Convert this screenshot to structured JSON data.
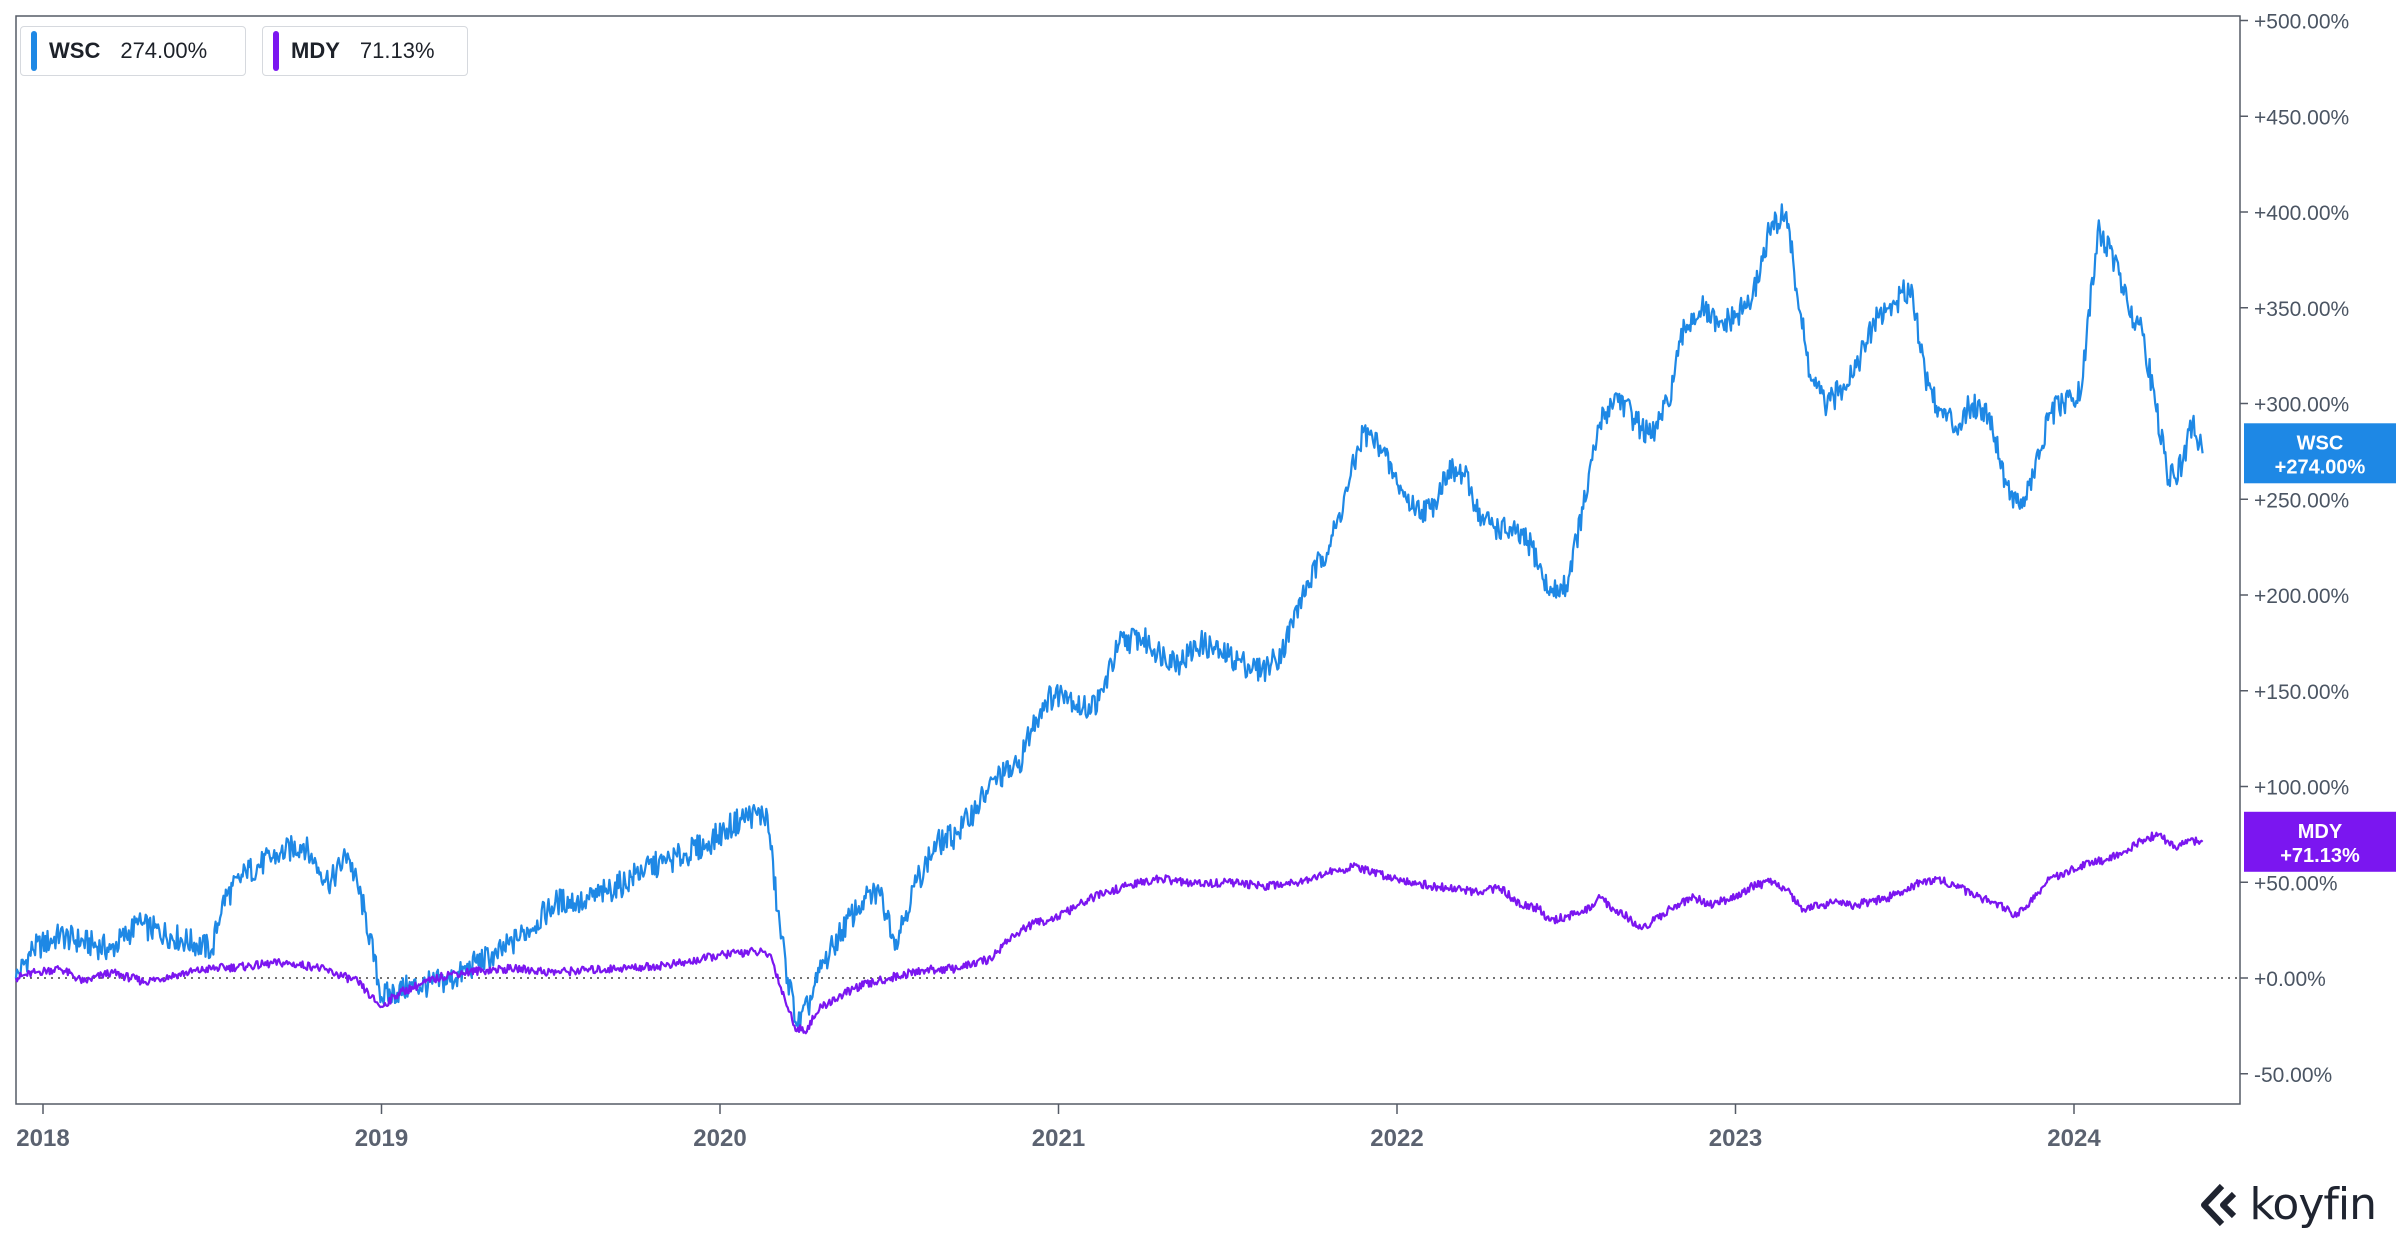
{
  "legend": [
    {
      "symbol": "WSC",
      "value": "274.00%",
      "color": "#1e88e5"
    },
    {
      "symbol": "MDY",
      "value": "71.13%",
      "color": "#7b16f0"
    }
  ],
  "badges": [
    {
      "symbol": "WSC",
      "value": "+274.00%",
      "y": 274.0,
      "color": "#1e88e5"
    },
    {
      "symbol": "MDY",
      "value": "+71.13%",
      "y": 71.13,
      "color": "#7b16f0"
    }
  ],
  "brand": {
    "name": "koyfin",
    "logo_icon": "koyfin-logo-icon"
  },
  "chart_data": {
    "type": "line",
    "title": "",
    "xlabel": "",
    "ylabel": "",
    "x_range": [
      2017.93,
      2024.6
    ],
    "ylim": [
      -50,
      500
    ],
    "y_ticks": [
      -50,
      0,
      50,
      100,
      150,
      200,
      250,
      300,
      350,
      400,
      450,
      500
    ],
    "y_tick_labels": [
      "-50.00%",
      "+0.00%",
      "+50.00%",
      "+100.00%",
      "+150.00%",
      "+200.00%",
      "+250.00%",
      "+300.00%",
      "+350.00%",
      "+400.00%",
      "+450.00%",
      "+500.00%"
    ],
    "x_ticks": [
      2018,
      2019,
      2020,
      2021,
      2022,
      2023,
      2024
    ],
    "x_tick_labels": [
      "2018",
      "2019",
      "2020",
      "2021",
      "2022",
      "2023",
      "2024"
    ],
    "zero_line": "dotted",
    "grid": false,
    "legend_position": "top-left",
    "series": [
      {
        "name": "WSC",
        "color": "#1e88e5",
        "points": [
          [
            2017.92,
            0
          ],
          [
            2017.97,
            15
          ],
          [
            2018.05,
            22
          ],
          [
            2018.2,
            15
          ],
          [
            2018.28,
            28
          ],
          [
            2018.38,
            22
          ],
          [
            2018.5,
            15
          ],
          [
            2018.53,
            40
          ],
          [
            2018.6,
            55
          ],
          [
            2018.7,
            65
          ],
          [
            2018.77,
            70
          ],
          [
            2018.8,
            60
          ],
          [
            2018.85,
            50
          ],
          [
            2018.9,
            65
          ],
          [
            2018.95,
            35
          ],
          [
            2019.0,
            -10
          ],
          [
            2019.08,
            -5
          ],
          [
            2019.15,
            -3
          ],
          [
            2019.22,
            0
          ],
          [
            2019.28,
            8
          ],
          [
            2019.34,
            12
          ],
          [
            2019.4,
            20
          ],
          [
            2019.46,
            30
          ],
          [
            2019.52,
            40
          ],
          [
            2019.6,
            40
          ],
          [
            2019.66,
            45
          ],
          [
            2019.72,
            50
          ],
          [
            2019.78,
            58
          ],
          [
            2019.84,
            60
          ],
          [
            2019.9,
            65
          ],
          [
            2019.96,
            70
          ],
          [
            2020.02,
            78
          ],
          [
            2020.08,
            85
          ],
          [
            2020.14,
            85
          ],
          [
            2020.17,
            35
          ],
          [
            2020.2,
            0
          ],
          [
            2020.23,
            -25
          ],
          [
            2020.26,
            -15
          ],
          [
            2020.3,
            5
          ],
          [
            2020.36,
            25
          ],
          [
            2020.42,
            40
          ],
          [
            2020.47,
            45
          ],
          [
            2020.52,
            20
          ],
          [
            2020.58,
            50
          ],
          [
            2020.64,
            70
          ],
          [
            2020.7,
            75
          ],
          [
            2020.76,
            90
          ],
          [
            2020.82,
            105
          ],
          [
            2020.88,
            110
          ],
          [
            2020.92,
            130
          ],
          [
            2020.96,
            145
          ],
          [
            2021.02,
            150
          ],
          [
            2021.07,
            140
          ],
          [
            2021.12,
            145
          ],
          [
            2021.18,
            175
          ],
          [
            2021.24,
            178
          ],
          [
            2021.3,
            170
          ],
          [
            2021.36,
            165
          ],
          [
            2021.42,
            175
          ],
          [
            2021.48,
            170
          ],
          [
            2021.54,
            165
          ],
          [
            2021.6,
            160
          ],
          [
            2021.66,
            170
          ],
          [
            2021.72,
            200
          ],
          [
            2021.78,
            220
          ],
          [
            2021.82,
            235
          ],
          [
            2021.86,
            260
          ],
          [
            2021.9,
            285
          ],
          [
            2021.95,
            278
          ],
          [
            2022.0,
            258
          ],
          [
            2022.05,
            245
          ],
          [
            2022.1,
            245
          ],
          [
            2022.15,
            265
          ],
          [
            2022.2,
            262
          ],
          [
            2022.25,
            240
          ],
          [
            2022.3,
            235
          ],
          [
            2022.35,
            232
          ],
          [
            2022.4,
            225
          ],
          [
            2022.45,
            200
          ],
          [
            2022.5,
            205
          ],
          [
            2022.55,
            245
          ],
          [
            2022.6,
            290
          ],
          [
            2022.65,
            305
          ],
          [
            2022.7,
            292
          ],
          [
            2022.75,
            282
          ],
          [
            2022.8,
            300
          ],
          [
            2022.85,
            340
          ],
          [
            2022.9,
            350
          ],
          [
            2022.95,
            340
          ],
          [
            2023.0,
            345
          ],
          [
            2023.05,
            355
          ],
          [
            2023.1,
            390
          ],
          [
            2023.15,
            400
          ],
          [
            2023.18,
            360
          ],
          [
            2023.22,
            315
          ],
          [
            2023.27,
            298
          ],
          [
            2023.32,
            310
          ],
          [
            2023.37,
            325
          ],
          [
            2023.42,
            345
          ],
          [
            2023.47,
            352
          ],
          [
            2023.52,
            362
          ],
          [
            2023.56,
            315
          ],
          [
            2023.6,
            298
          ],
          [
            2023.65,
            288
          ],
          [
            2023.7,
            300
          ],
          [
            2023.75,
            295
          ],
          [
            2023.8,
            258
          ],
          [
            2023.84,
            245
          ],
          [
            2023.88,
            262
          ],
          [
            2023.93,
            295
          ],
          [
            2023.97,
            300
          ],
          [
            2024.02,
            305
          ],
          [
            2024.07,
            390
          ],
          [
            2024.12,
            375
          ],
          [
            2024.16,
            350
          ],
          [
            2024.2,
            340
          ],
          [
            2024.24,
            300
          ],
          [
            2024.28,
            260
          ],
          [
            2024.32,
            268
          ],
          [
            2024.35,
            290
          ],
          [
            2024.38,
            274
          ]
        ]
      },
      {
        "name": "MDY",
        "color": "#7b16f0",
        "points": [
          [
            2017.92,
            0
          ],
          [
            2017.98,
            3
          ],
          [
            2018.05,
            5
          ],
          [
            2018.12,
            -2
          ],
          [
            2018.2,
            3
          ],
          [
            2018.3,
            -2
          ],
          [
            2018.4,
            2
          ],
          [
            2018.5,
            5
          ],
          [
            2018.6,
            6
          ],
          [
            2018.7,
            8
          ],
          [
            2018.8,
            6
          ],
          [
            2018.87,
            2
          ],
          [
            2018.93,
            -2
          ],
          [
            2018.97,
            -10
          ],
          [
            2019.0,
            -15
          ],
          [
            2019.05,
            -8
          ],
          [
            2019.12,
            -3
          ],
          [
            2019.2,
            2
          ],
          [
            2019.3,
            4
          ],
          [
            2019.4,
            5
          ],
          [
            2019.5,
            3
          ],
          [
            2019.6,
            4
          ],
          [
            2019.7,
            5
          ],
          [
            2019.8,
            6
          ],
          [
            2019.9,
            8
          ],
          [
            2020.0,
            12
          ],
          [
            2020.1,
            14
          ],
          [
            2020.15,
            12
          ],
          [
            2020.18,
            -5
          ],
          [
            2020.22,
            -25
          ],
          [
            2020.25,
            -28
          ],
          [
            2020.3,
            -15
          ],
          [
            2020.4,
            -5
          ],
          [
            2020.5,
            0
          ],
          [
            2020.6,
            4
          ],
          [
            2020.7,
            5
          ],
          [
            2020.8,
            10
          ],
          [
            2020.85,
            20
          ],
          [
            2020.92,
            28
          ],
          [
            2021.0,
            32
          ],
          [
            2021.1,
            42
          ],
          [
            2021.2,
            48
          ],
          [
            2021.3,
            52
          ],
          [
            2021.4,
            49
          ],
          [
            2021.5,
            50
          ],
          [
            2021.6,
            48
          ],
          [
            2021.7,
            50
          ],
          [
            2021.8,
            55
          ],
          [
            2021.87,
            58
          ],
          [
            2021.93,
            55
          ],
          [
            2022.0,
            52
          ],
          [
            2022.1,
            48
          ],
          [
            2022.2,
            46
          ],
          [
            2022.25,
            44
          ],
          [
            2022.3,
            48
          ],
          [
            2022.35,
            40
          ],
          [
            2022.42,
            36
          ],
          [
            2022.45,
            30
          ],
          [
            2022.5,
            32
          ],
          [
            2022.55,
            34
          ],
          [
            2022.6,
            42
          ],
          [
            2022.64,
            36
          ],
          [
            2022.68,
            32
          ],
          [
            2022.72,
            26
          ],
          [
            2022.76,
            30
          ],
          [
            2022.82,
            38
          ],
          [
            2022.88,
            42
          ],
          [
            2022.92,
            38
          ],
          [
            2022.96,
            40
          ],
          [
            2023.0,
            42
          ],
          [
            2023.05,
            48
          ],
          [
            2023.1,
            50
          ],
          [
            2023.15,
            46
          ],
          [
            2023.2,
            36
          ],
          [
            2023.25,
            38
          ],
          [
            2023.3,
            40
          ],
          [
            2023.35,
            38
          ],
          [
            2023.4,
            40
          ],
          [
            2023.45,
            42
          ],
          [
            2023.5,
            46
          ],
          [
            2023.55,
            50
          ],
          [
            2023.6,
            52
          ],
          [
            2023.65,
            48
          ],
          [
            2023.7,
            44
          ],
          [
            2023.75,
            40
          ],
          [
            2023.8,
            36
          ],
          [
            2023.83,
            32
          ],
          [
            2023.87,
            40
          ],
          [
            2023.92,
            50
          ],
          [
            2023.98,
            56
          ],
          [
            2024.05,
            60
          ],
          [
            2024.1,
            62
          ],
          [
            2024.15,
            66
          ],
          [
            2024.2,
            72
          ],
          [
            2024.25,
            75
          ],
          [
            2024.3,
            68
          ],
          [
            2024.34,
            72
          ],
          [
            2024.38,
            71.13
          ]
        ]
      }
    ]
  }
}
